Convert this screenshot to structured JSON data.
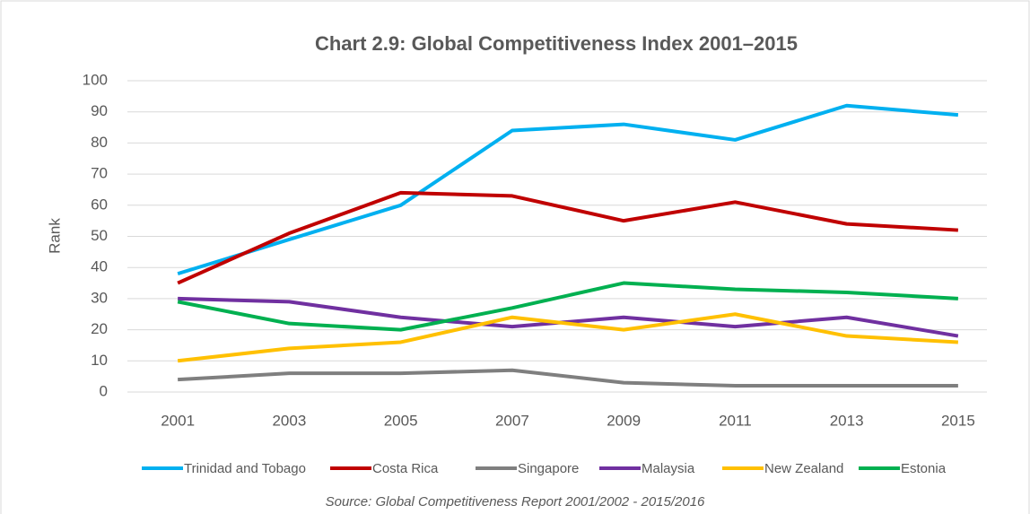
{
  "chart_data": {
    "type": "line",
    "title": "Chart 2.9: Global Competitiveness Index 2001–2015",
    "y_label": "Rank",
    "source": "Source: Global Competitiveness Report 2001/2002 - 2015/2016",
    "categories": [
      "2001",
      "2003",
      "2005",
      "2007",
      "2009",
      "2011",
      "2013",
      "2015"
    ],
    "series": [
      {
        "name": "Trinidad and Tobago",
        "color": "#00b0f0",
        "values": [
          38,
          49,
          60,
          84,
          86,
          81,
          92,
          89
        ]
      },
      {
        "name": "Costa Rica",
        "color": "#c00000",
        "values": [
          35,
          51,
          64,
          63,
          55,
          61,
          54,
          52
        ]
      },
      {
        "name": "Singapore",
        "color": "#7f7f7f",
        "values": [
          4,
          6,
          6,
          7,
          3,
          2,
          2,
          2
        ]
      },
      {
        "name": "Malaysia",
        "color": "#7030a0",
        "values": [
          30,
          29,
          24,
          21,
          24,
          21,
          24,
          18
        ]
      },
      {
        "name": "New Zealand",
        "color": "#ffc000",
        "values": [
          10,
          14,
          16,
          24,
          20,
          25,
          18,
          16
        ]
      },
      {
        "name": "Estonia",
        "color": "#00b050",
        "values": [
          29,
          22,
          20,
          27,
          35,
          33,
          32,
          30
        ]
      }
    ],
    "ylim": [
      0,
      100
    ],
    "yticks": [
      0,
      10,
      20,
      30,
      40,
      50,
      60,
      70,
      80,
      90,
      100
    ],
    "grid": true,
    "legend": "bottom"
  }
}
